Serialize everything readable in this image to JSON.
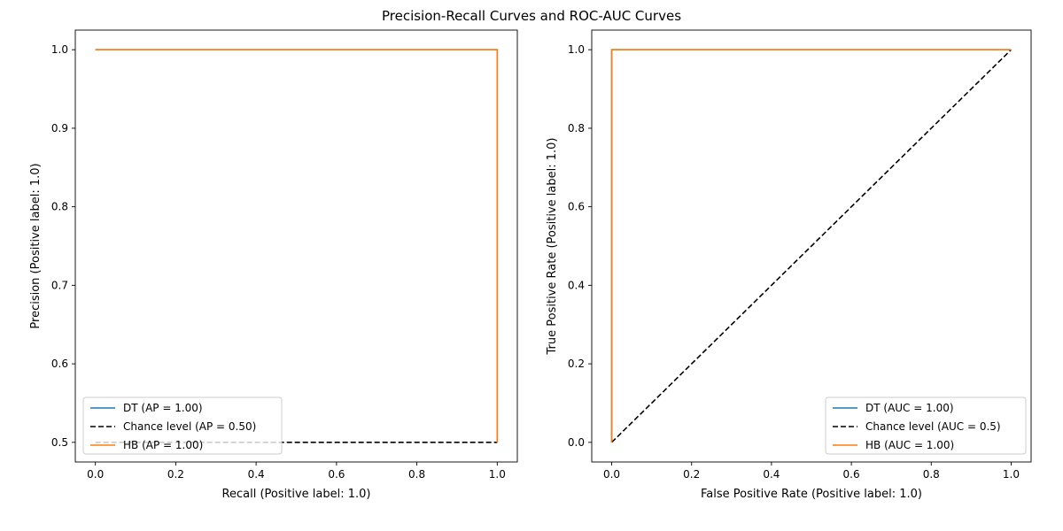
{
  "figure": {
    "title": "Precision-Recall Curves and ROC-AUC Curves"
  },
  "chart_data": [
    {
      "type": "line",
      "title": "",
      "xlabel": "Recall (Positive label: 1.0)",
      "ylabel": "Precision (Positive label: 1.0)",
      "xlim": [
        -0.05,
        1.05
      ],
      "ylim": [
        0.475,
        1.025
      ],
      "xticks": [
        0.0,
        0.2,
        0.4,
        0.6,
        0.8,
        1.0
      ],
      "yticks": [
        0.5,
        0.6,
        0.7,
        0.8,
        0.9,
        1.0
      ],
      "xtick_labels": [
        "0.0",
        "0.2",
        "0.4",
        "0.6",
        "0.8",
        "1.0"
      ],
      "ytick_labels": [
        "0.5",
        "0.6",
        "0.7",
        "0.8",
        "0.9",
        "1.0"
      ],
      "grid": false,
      "legend_position": "lower-left",
      "series": [
        {
          "name": "DT (AP = 1.00)",
          "color": "#1f77b4",
          "dashed": false,
          "x": [
            0.0,
            1.0,
            1.0
          ],
          "y": [
            1.0,
            1.0,
            0.5
          ]
        },
        {
          "name": "Chance level (AP = 0.50)",
          "color": "#000000",
          "dashed": true,
          "x": [
            0.0,
            1.0
          ],
          "y": [
            0.5,
            0.5
          ]
        },
        {
          "name": "HB (AP = 1.00)",
          "color": "#ff7f0e",
          "dashed": false,
          "x": [
            0.0,
            1.0,
            1.0
          ],
          "y": [
            1.0,
            1.0,
            0.5
          ]
        }
      ]
    },
    {
      "type": "line",
      "title": "",
      "xlabel": "False Positive Rate (Positive label: 1.0)",
      "ylabel": "True Positive Rate (Positive label: 1.0)",
      "xlim": [
        -0.05,
        1.05
      ],
      "ylim": [
        -0.05,
        1.05
      ],
      "xticks": [
        0.0,
        0.2,
        0.4,
        0.6,
        0.8,
        1.0
      ],
      "yticks": [
        0.0,
        0.2,
        0.4,
        0.6,
        0.8,
        1.0
      ],
      "xtick_labels": [
        "0.0",
        "0.2",
        "0.4",
        "0.6",
        "0.8",
        "1.0"
      ],
      "ytick_labels": [
        "0.0",
        "0.2",
        "0.4",
        "0.6",
        "0.8",
        "1.0"
      ],
      "grid": false,
      "legend_position": "lower-right",
      "series": [
        {
          "name": "DT (AUC = 1.00)",
          "color": "#1f77b4",
          "dashed": false,
          "x": [
            0.0,
            0.0,
            1.0
          ],
          "y": [
            0.0,
            1.0,
            1.0
          ]
        },
        {
          "name": "Chance level (AUC = 0.5)",
          "color": "#000000",
          "dashed": true,
          "x": [
            0.0,
            1.0
          ],
          "y": [
            0.0,
            1.0
          ]
        },
        {
          "name": "HB (AUC = 1.00)",
          "color": "#ff7f0e",
          "dashed": false,
          "x": [
            0.0,
            0.0,
            1.0
          ],
          "y": [
            0.0,
            1.0,
            1.0
          ]
        }
      ]
    }
  ]
}
